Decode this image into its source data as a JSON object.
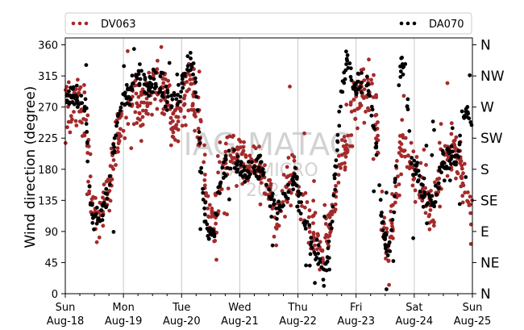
{
  "chart_data": {
    "type": "scatter",
    "ylabel": "Wind direction (degree)",
    "xlabel": "",
    "ylim": [
      0,
      370
    ],
    "yticks": [
      0,
      45,
      90,
      135,
      180,
      225,
      270,
      315,
      360
    ],
    "x_range_days": [
      0,
      7
    ],
    "xticks": [
      {
        "day": 0,
        "line1": "Sun",
        "line2": "Aug-18"
      },
      {
        "day": 1,
        "line1": "Mon",
        "line2": "Aug-19"
      },
      {
        "day": 2,
        "line1": "Tue",
        "line2": "Aug-20"
      },
      {
        "day": 3,
        "line1": "Wed",
        "line2": "Aug-21"
      },
      {
        "day": 4,
        "line1": "Thu",
        "line2": "Aug-22"
      },
      {
        "day": 5,
        "line1": "Fri",
        "line2": "Aug-23"
      },
      {
        "day": 6,
        "line1": "Sat",
        "line2": "Aug-24"
      },
      {
        "day": 7,
        "line1": "Sun",
        "line2": "Aug-25"
      }
    ],
    "compass_labels": [
      "N",
      "NE",
      "E",
      "SE",
      "S",
      "SW",
      "W",
      "NW",
      "N"
    ],
    "grid": "vertical",
    "legend_position": "top",
    "watermark": {
      "line1": "IAG-MATAO",
      "line2": "LAB MICRO",
      "line3": "2024"
    },
    "series": [
      {
        "name": "DV063",
        "color": "#a52a2a",
        "trend": [
          [
            0.0,
            270
          ],
          [
            0.15,
            280
          ],
          [
            0.25,
            275
          ],
          [
            0.35,
            240
          ],
          [
            0.45,
            130
          ],
          [
            0.55,
            110
          ],
          [
            0.65,
            130
          ],
          [
            0.75,
            150
          ],
          [
            0.85,
            210
          ],
          [
            0.95,
            250
          ],
          [
            1.05,
            260
          ],
          [
            1.15,
            270
          ],
          [
            1.25,
            280
          ],
          [
            1.35,
            270
          ],
          [
            1.45,
            290
          ],
          [
            1.55,
            310
          ],
          [
            1.65,
            300
          ],
          [
            1.75,
            290
          ],
          [
            1.85,
            240
          ],
          [
            1.95,
            260
          ],
          [
            2.05,
            280
          ],
          [
            2.15,
            290
          ],
          [
            2.25,
            270
          ],
          [
            2.35,
            210
          ],
          [
            2.45,
            120
          ],
          [
            2.55,
            100
          ],
          [
            2.65,
            160
          ],
          [
            2.75,
            190
          ],
          [
            2.85,
            200
          ],
          [
            2.95,
            195
          ],
          [
            3.05,
            185
          ],
          [
            3.15,
            180
          ],
          [
            3.25,
            185
          ],
          [
            3.35,
            190
          ],
          [
            3.45,
            170
          ],
          [
            3.55,
            120
          ],
          [
            3.65,
            110
          ],
          [
            3.75,
            140
          ],
          [
            3.85,
            160
          ],
          [
            3.95,
            170
          ],
          [
            4.05,
            120
          ],
          [
            4.15,
            110
          ],
          [
            4.25,
            90
          ],
          [
            4.35,
            70
          ],
          [
            4.45,
            60
          ],
          [
            4.55,
            90
          ],
          [
            4.65,
            150
          ],
          [
            4.75,
            190
          ],
          [
            4.85,
            220
          ],
          [
            4.95,
            260
          ],
          [
            5.05,
            280
          ],
          [
            5.15,
            290
          ],
          [
            5.25,
            300
          ],
          [
            5.35,
            250
          ],
          [
            5.45,
            100
          ],
          [
            5.55,
            70
          ],
          [
            5.65,
            130
          ],
          [
            5.75,
            200
          ],
          [
            5.85,
            210
          ],
          [
            5.95,
            190
          ],
          [
            6.05,
            160
          ],
          [
            6.15,
            140
          ],
          [
            6.25,
            125
          ],
          [
            6.35,
            140
          ],
          [
            6.45,
            180
          ],
          [
            6.55,
            200
          ],
          [
            6.65,
            210
          ],
          [
            6.75,
            200
          ],
          [
            6.85,
            160
          ],
          [
            6.95,
            120
          ]
        ],
        "spread": 28
      },
      {
        "name": "DA070",
        "color": "#000000",
        "trend": [
          [
            0.0,
            290
          ],
          [
            0.15,
            285
          ],
          [
            0.25,
            280
          ],
          [
            0.35,
            270
          ],
          [
            0.45,
            110
          ],
          [
            0.55,
            110
          ],
          [
            0.65,
            120
          ],
          [
            0.75,
            150
          ],
          [
            0.85,
            220
          ],
          [
            0.95,
            270
          ],
          [
            1.05,
            290
          ],
          [
            1.15,
            300
          ],
          [
            1.25,
            320
          ],
          [
            1.35,
            310
          ],
          [
            1.45,
            300
          ],
          [
            1.55,
            310
          ],
          [
            1.65,
            300
          ],
          [
            1.75,
            290
          ],
          [
            1.85,
            280
          ],
          [
            1.95,
            290
          ],
          [
            2.05,
            320
          ],
          [
            2.15,
            340
          ],
          [
            2.25,
            300
          ],
          [
            2.35,
            150
          ],
          [
            2.45,
            80
          ],
          [
            2.55,
            90
          ],
          [
            2.65,
            150
          ],
          [
            2.75,
            190
          ],
          [
            2.85,
            200
          ],
          [
            2.95,
            190
          ],
          [
            3.05,
            180
          ],
          [
            3.15,
            175
          ],
          [
            3.25,
            180
          ],
          [
            3.35,
            185
          ],
          [
            3.45,
            170
          ],
          [
            3.55,
            130
          ],
          [
            3.65,
            120
          ],
          [
            3.75,
            140
          ],
          [
            3.85,
            150
          ],
          [
            3.95,
            170
          ],
          [
            4.05,
            120
          ],
          [
            4.15,
            100
          ],
          [
            4.25,
            70
          ],
          [
            4.35,
            50
          ],
          [
            4.45,
            30
          ],
          [
            4.55,
            60
          ],
          [
            4.65,
            180
          ],
          [
            4.75,
            300
          ],
          [
            4.85,
            340
          ],
          [
            4.95,
            300
          ],
          [
            5.05,
            300
          ],
          [
            5.15,
            310
          ],
          [
            5.25,
            290
          ],
          [
            5.35,
            200
          ],
          [
            5.45,
            100
          ],
          [
            5.55,
            60
          ],
          [
            5.65,
            120
          ],
          [
            5.75,
            330
          ],
          [
            5.85,
            320
          ],
          [
            5.95,
            190
          ],
          [
            6.05,
            180
          ],
          [
            6.15,
            140
          ],
          [
            6.25,
            130
          ],
          [
            6.35,
            140
          ],
          [
            6.45,
            180
          ],
          [
            6.55,
            195
          ],
          [
            6.65,
            200
          ],
          [
            6.75,
            190
          ],
          [
            6.85,
            260
          ],
          [
            6.95,
            250
          ]
        ],
        "spread": 14
      }
    ]
  }
}
